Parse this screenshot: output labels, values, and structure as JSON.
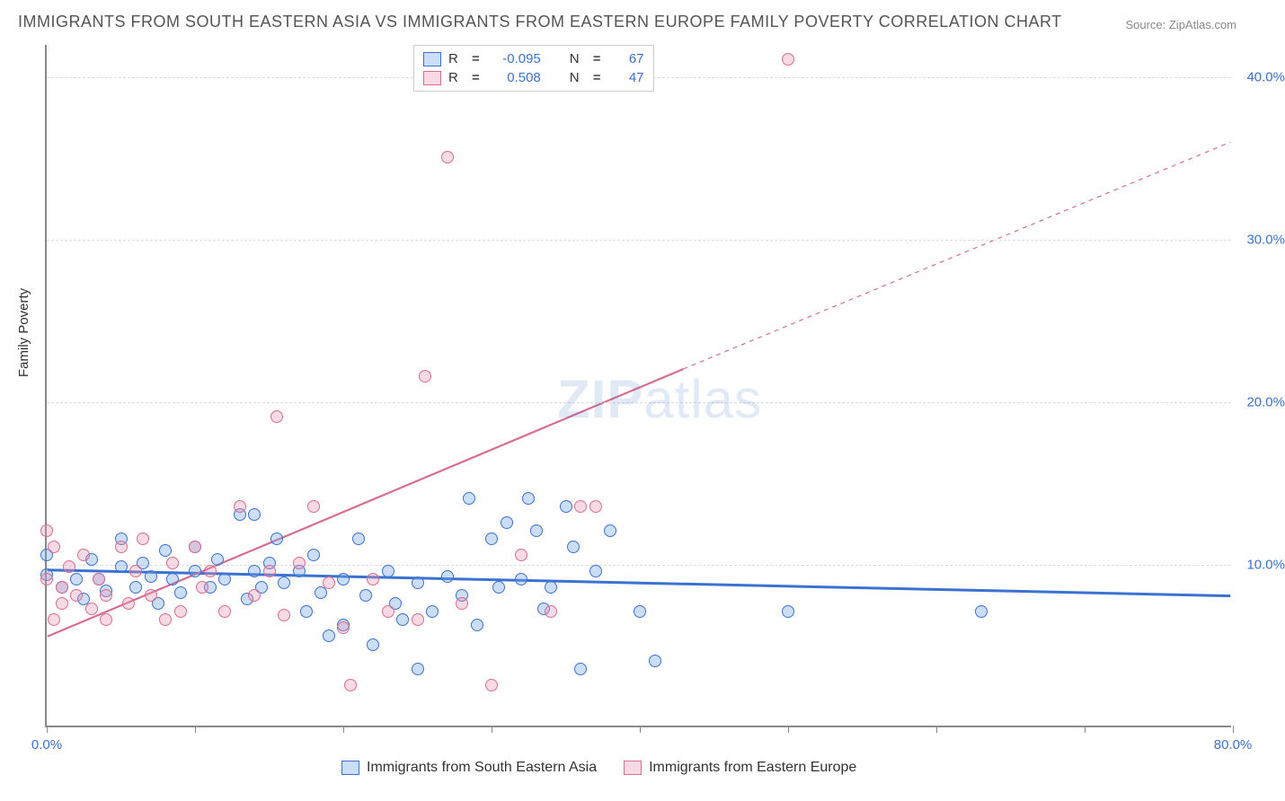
{
  "title": "IMMIGRANTS FROM SOUTH EASTERN ASIA VS IMMIGRANTS FROM EASTERN EUROPE FAMILY POVERTY CORRELATION CHART",
  "source": "Source: ZipAtlas.com",
  "ylabel": "Family Poverty",
  "watermark_a": "ZIP",
  "watermark_b": "atlas",
  "chart": {
    "type": "scatter",
    "xlim": [
      0,
      80
    ],
    "ylim": [
      0,
      42
    ],
    "x_ticks": [
      0,
      10,
      20,
      30,
      40,
      50,
      60,
      70,
      80
    ],
    "x_tick_labels": {
      "0": "0.0%",
      "80": "80.0%"
    },
    "y_gridlines": [
      10,
      20,
      30,
      40
    ],
    "y_tick_labels": {
      "10": "10.0%",
      "20": "20.0%",
      "30": "30.0%",
      "40": "40.0%"
    },
    "background_color": "#ffffff",
    "grid_color": "#dddddd",
    "axis_color": "#888888",
    "tick_label_color": "#3b72d1",
    "point_radius": 7,
    "point_stroke_width": 1.5,
    "point_fill_opacity": 0.35
  },
  "series": [
    {
      "name": "Immigrants from South Eastern Asia",
      "color": "#3b72d1",
      "fill": "rgba(110,160,230,0.35)",
      "R": "-0.095",
      "N": "67",
      "trend": {
        "x1": 0,
        "y1": 9.6,
        "x2": 80,
        "y2": 8.0,
        "width": 3,
        "dash": "none"
      },
      "points": [
        [
          0,
          10.5
        ],
        [
          0,
          9.3
        ],
        [
          1,
          8.5
        ],
        [
          2,
          9.0
        ],
        [
          2.5,
          7.8
        ],
        [
          3,
          10.2
        ],
        [
          3.5,
          9.0
        ],
        [
          4,
          8.3
        ],
        [
          5,
          11.5
        ],
        [
          5,
          9.8
        ],
        [
          6,
          8.5
        ],
        [
          6.5,
          10.0
        ],
        [
          7,
          9.2
        ],
        [
          7.5,
          7.5
        ],
        [
          8,
          10.8
        ],
        [
          8.5,
          9.0
        ],
        [
          9,
          8.2
        ],
        [
          10,
          11.0
        ],
        [
          10,
          9.5
        ],
        [
          11,
          8.5
        ],
        [
          11.5,
          10.2
        ],
        [
          12,
          9.0
        ],
        [
          13,
          13.0
        ],
        [
          13.5,
          7.8
        ],
        [
          14,
          9.5
        ],
        [
          14.5,
          8.5
        ],
        [
          15,
          10.0
        ],
        [
          15.5,
          11.5
        ],
        [
          16,
          8.8
        ],
        [
          17,
          9.5
        ],
        [
          17.5,
          7.0
        ],
        [
          18,
          10.5
        ],
        [
          18.5,
          8.2
        ],
        [
          19,
          5.5
        ],
        [
          20,
          9.0
        ],
        [
          20,
          6.2
        ],
        [
          21,
          11.5
        ],
        [
          21.5,
          8.0
        ],
        [
          22,
          5.0
        ],
        [
          23,
          9.5
        ],
        [
          23.5,
          7.5
        ],
        [
          24,
          6.5
        ],
        [
          25,
          8.8
        ],
        [
          25,
          3.5
        ],
        [
          26,
          7.0
        ],
        [
          27,
          9.2
        ],
        [
          28,
          8.0
        ],
        [
          28.5,
          14.0
        ],
        [
          29,
          6.2
        ],
        [
          30,
          11.5
        ],
        [
          30.5,
          8.5
        ],
        [
          31,
          12.5
        ],
        [
          32,
          9.0
        ],
        [
          32.5,
          14.0
        ],
        [
          33,
          12.0
        ],
        [
          33.5,
          7.2
        ],
        [
          34,
          8.5
        ],
        [
          35,
          13.5
        ],
        [
          35.5,
          11.0
        ],
        [
          36,
          3.5
        ],
        [
          37,
          9.5
        ],
        [
          38,
          12.0
        ],
        [
          40,
          7.0
        ],
        [
          41,
          4.0
        ],
        [
          50,
          7.0
        ],
        [
          63,
          7.0
        ],
        [
          14,
          13.0
        ]
      ]
    },
    {
      "name": "Immigrants from Eastern Europe",
      "color": "#d96d8f",
      "fill": "rgba(235,150,180,0.35)",
      "R": "0.508",
      "N": "47",
      "trend_solid": {
        "x1": 0,
        "y1": 5.5,
        "x2": 43,
        "y2": 22.0,
        "width": 2.2
      },
      "trend_dash": {
        "x1": 43,
        "y1": 22.0,
        "x2": 80,
        "y2": 36.0,
        "width": 1.2,
        "dash": "5,5"
      },
      "points": [
        [
          0,
          12.0
        ],
        [
          0,
          9.0
        ],
        [
          0.5,
          11.0
        ],
        [
          1,
          8.5
        ],
        [
          1,
          7.5
        ],
        [
          1.5,
          9.8
        ],
        [
          2,
          8.0
        ],
        [
          2.5,
          10.5
        ],
        [
          3,
          7.2
        ],
        [
          3.5,
          9.0
        ],
        [
          4,
          6.5
        ],
        [
          4,
          8.0
        ],
        [
          5,
          11.0
        ],
        [
          5.5,
          7.5
        ],
        [
          6,
          9.5
        ],
        [
          6.5,
          11.5
        ],
        [
          7,
          8.0
        ],
        [
          8,
          6.5
        ],
        [
          8.5,
          10.0
        ],
        [
          9,
          7.0
        ],
        [
          10,
          11.0
        ],
        [
          10.5,
          8.5
        ],
        [
          11,
          9.5
        ],
        [
          12,
          7.0
        ],
        [
          13,
          13.5
        ],
        [
          14,
          8.0
        ],
        [
          15,
          9.5
        ],
        [
          15.5,
          19.0
        ],
        [
          16,
          6.8
        ],
        [
          17,
          10.0
        ],
        [
          18,
          13.5
        ],
        [
          19,
          8.8
        ],
        [
          20,
          6.0
        ],
        [
          20.5,
          2.5
        ],
        [
          22,
          9.0
        ],
        [
          23,
          7.0
        ],
        [
          25,
          6.5
        ],
        [
          25.5,
          21.5
        ],
        [
          27,
          35.0
        ],
        [
          28,
          7.5
        ],
        [
          30,
          2.5
        ],
        [
          32,
          10.5
        ],
        [
          34,
          7.0
        ],
        [
          36,
          13.5
        ],
        [
          37,
          13.5
        ],
        [
          50,
          41.0
        ],
        [
          0.5,
          6.5
        ]
      ]
    }
  ],
  "legend_top": {
    "R_label": "R",
    "eq": "=",
    "N_label": "N"
  }
}
